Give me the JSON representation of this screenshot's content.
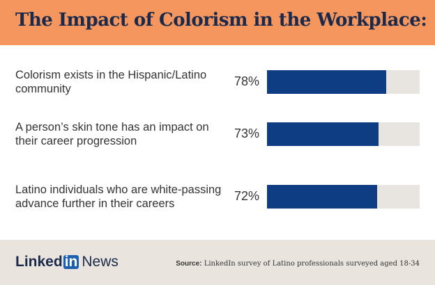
{
  "chart_data": {
    "type": "bar",
    "orientation": "horizontal",
    "title": "The Impact of Colorism in the Workplace:",
    "categories": [
      "Colorism exists in the Hispanic/Latino community",
      "A person’s skin tone has an impact on their career progression",
      "Latino individuals who are white-passing advance further in their careers"
    ],
    "values": [
      78,
      73,
      72
    ],
    "value_labels": [
      "78%",
      "73%",
      "72%"
    ],
    "xlim": [
      0,
      100
    ],
    "color": "#0f3d83",
    "track_color": "#e8e5e1"
  },
  "footer": {
    "logo_linked": "Linked",
    "logo_in": "in",
    "logo_news": "News",
    "source_label": "Source:",
    "source": "LinkedIn survey of Latino professionals surveyed aged 18-34"
  }
}
